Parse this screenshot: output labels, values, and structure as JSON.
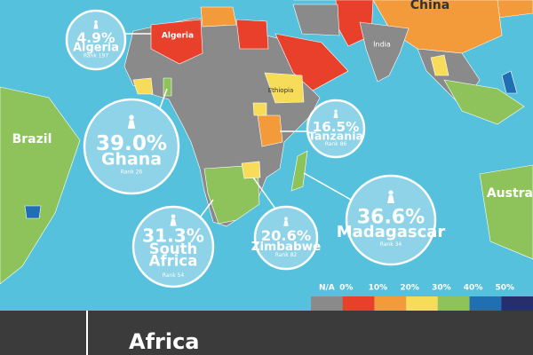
{
  "map_labels": {
    "china": "China",
    "india": "India",
    "brazil": "Brazil",
    "algeria": "Algeria",
    "ethiopia": "Ethiopia",
    "australia": "Austra"
  },
  "callouts": [
    {
      "country": "Algeria",
      "percent": "4.9%",
      "rank": "Rank 197"
    },
    {
      "country": "Ghana",
      "percent": "39.0%",
      "rank": "Rank 26"
    },
    {
      "country": "Tanzania",
      "percent": "16.5%",
      "rank": "Rank 86"
    },
    {
      "country": "South Africa",
      "percent": "31.3%",
      "rank": "Rank 54"
    },
    {
      "country": "Zimbabwe",
      "percent": "20.6%",
      "rank": "Rank 82"
    },
    {
      "country": "Madagascar",
      "percent": "36.6%",
      "rank": "Rank 34"
    }
  ],
  "legend": {
    "labels": [
      "N/A",
      "0%",
      "10%",
      "20%",
      "30%",
      "40%",
      "50%"
    ]
  },
  "footer": {
    "title": "Africa"
  }
}
